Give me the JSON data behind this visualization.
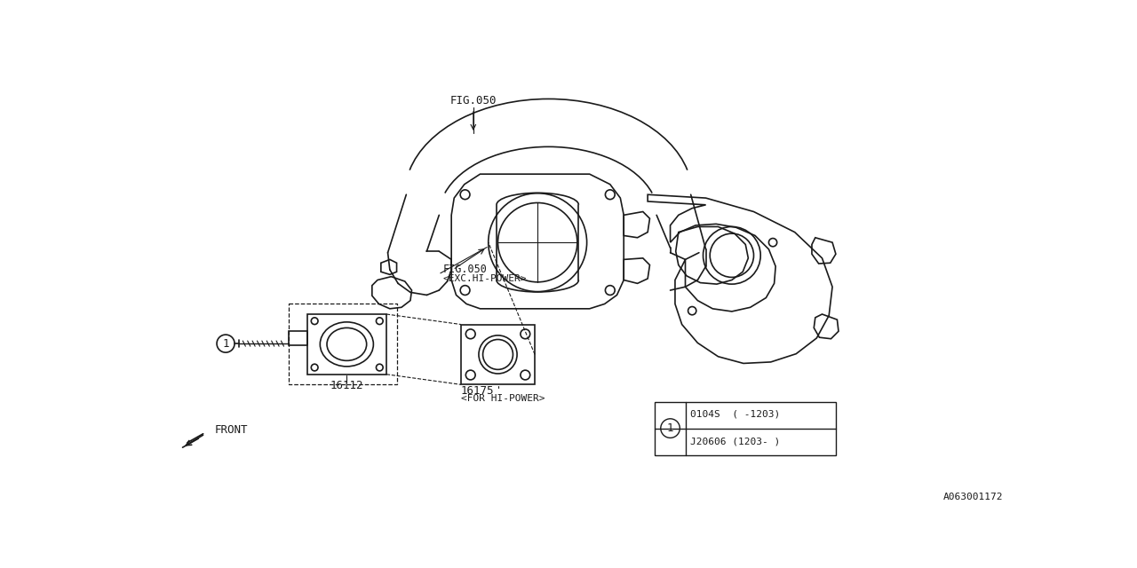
{
  "bg_color": "#ffffff",
  "line_color": "#1a1a1a",
  "fig_width": 12.8,
  "fig_height": 6.4,
  "watermark": "A063001172",
  "label_fig050_top": "FIG.050",
  "label_fig050_mid": "FIG.050",
  "label_exc_hi_power": "<EXC.HI-POWER>",
  "label_16112": "16112",
  "label_16175": "16175",
  "label_for_hi_power": "<FOR HI-POWER>",
  "label_front": "FRONT",
  "part1_row1": "0104S  ( -1203)",
  "part1_row2": "J20606 (1203- )",
  "circle1_label": "1"
}
